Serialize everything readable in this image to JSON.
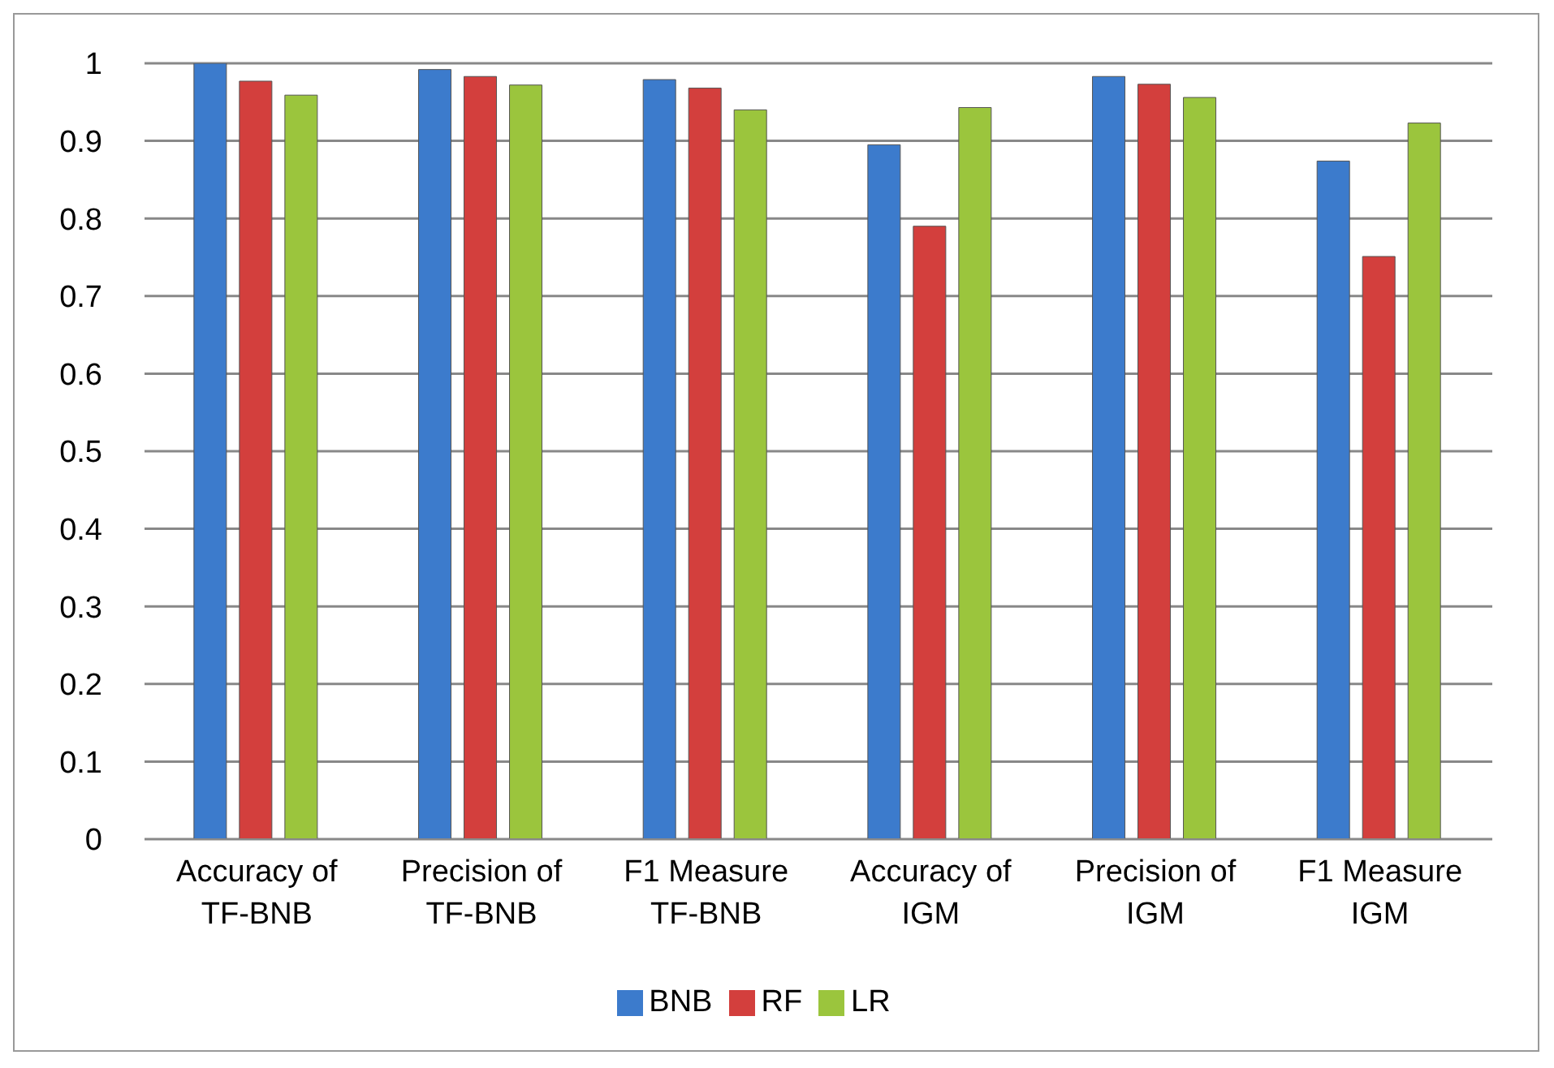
{
  "chart_data": {
    "type": "bar",
    "categories": [
      "Accuracy of TF-BNB",
      "Precision of TF-BNB",
      "F1 Measure TF-BNB",
      "Accuracy of IGM",
      "Precision of IGM",
      "F1 Measure IGM"
    ],
    "series": [
      {
        "name": "BNB",
        "color": "#3c7bcc",
        "values": [
          1.0,
          0.992,
          0.979,
          0.895,
          0.983,
          0.874
        ]
      },
      {
        "name": "RF",
        "color": "#d33f3d",
        "values": [
          0.977,
          0.983,
          0.968,
          0.79,
          0.973,
          0.751
        ]
      },
      {
        "name": "LR",
        "color": "#9bc53d",
        "values": [
          0.959,
          0.972,
          0.94,
          0.943,
          0.956,
          0.923
        ]
      }
    ],
    "ylim": [
      0,
      1
    ],
    "yticks": [
      0,
      0.1,
      0.2,
      0.3,
      0.4,
      0.5,
      0.6,
      0.7,
      0.8,
      0.9,
      1
    ],
    "grid": "y",
    "legend": "bottom"
  }
}
